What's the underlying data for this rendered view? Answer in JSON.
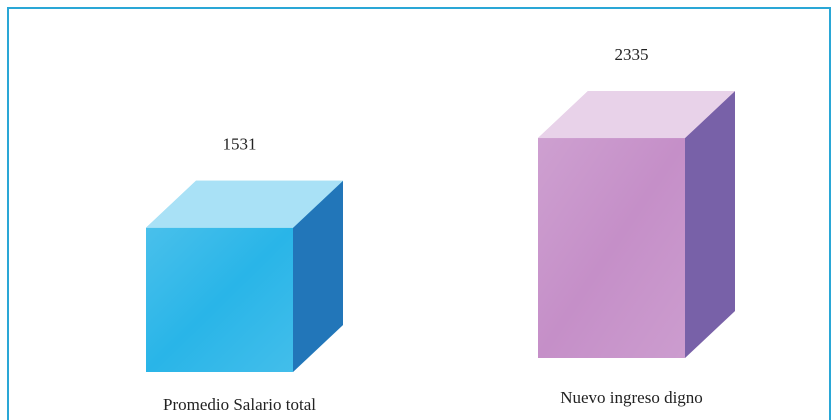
{
  "chart_data": {
    "type": "bar3d",
    "categories": [
      "Promedio Salario total",
      "Nuevo ingreso digno"
    ],
    "values": [
      1531,
      2335
    ],
    "colors": [
      "#29b5e8",
      "#c58fc8"
    ]
  }
}
